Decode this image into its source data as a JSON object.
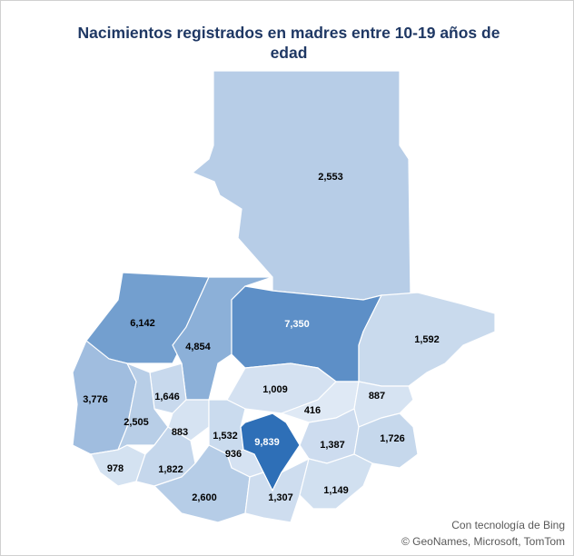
{
  "chart_data": {
    "type": "choropleth",
    "title": "Nacimientos registrados en madres entre 10-19 años de edad",
    "values": [
      2553,
      6142,
      4854,
      7350,
      1592,
      3776,
      1646,
      2505,
      1009,
      416,
      887,
      883,
      1532,
      9839,
      936,
      1387,
      1726,
      978,
      1822,
      2600,
      1307,
      1149
    ],
    "value_labels": [
      "2,553",
      "6,142",
      "4,854",
      "7,350",
      "1,592",
      "3,776",
      "1,646",
      "2,505",
      "1,009",
      "416",
      "887",
      "883",
      "1,532",
      "9,839",
      "936",
      "1,387",
      "1,726",
      "978",
      "1,822",
      "2,600",
      "1,307",
      "1,149"
    ],
    "colors": [
      "#dfe9f5",
      "#2e6fb7"
    ],
    "attribution": [
      "Con tecnología de Bing",
      "© GeoNames, Microsoft, TomTom"
    ]
  }
}
